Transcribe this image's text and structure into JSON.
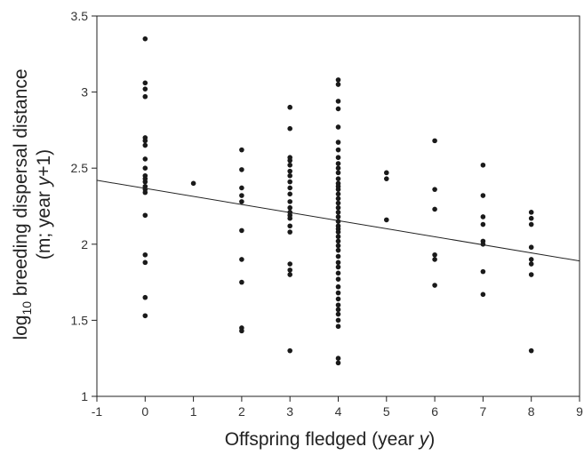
{
  "chart_data": {
    "type": "scatter",
    "xlabel": "Offspring fledged (year y)",
    "ylabel": {
      "prefix": "log",
      "subscript": "10",
      "line1_rest": " breeding dispersal distance",
      "line2_pre": "(m; year ",
      "line2_italic": "y",
      "line2_post": "+1)"
    },
    "xlabel_parts": {
      "pre": "Offspring fledged (year ",
      "italic": "y",
      "post": ")"
    },
    "xlim": [
      -1,
      9
    ],
    "ylim": [
      1,
      3.5
    ],
    "x_ticks": [
      -1,
      0,
      1,
      2,
      3,
      4,
      5,
      6,
      7,
      8,
      9
    ],
    "y_ticks": [
      1,
      1.5,
      2,
      2.5,
      3,
      3.5
    ],
    "x_tick_labels": [
      "-1",
      "0",
      "1",
      "2",
      "3",
      "4",
      "5",
      "6",
      "7",
      "8",
      "9"
    ],
    "y_tick_labels": [
      "1",
      "1.5",
      "2",
      "2.5",
      "3",
      "3.5"
    ],
    "grid": false,
    "legend": "none",
    "points": [
      {
        "x": 0,
        "y": 3.35
      },
      {
        "x": 0,
        "y": 3.06
      },
      {
        "x": 0,
        "y": 3.02
      },
      {
        "x": 0,
        "y": 2.97
      },
      {
        "x": 0,
        "y": 2.7
      },
      {
        "x": 0,
        "y": 2.68
      },
      {
        "x": 0,
        "y": 2.65
      },
      {
        "x": 0,
        "y": 2.56
      },
      {
        "x": 0,
        "y": 2.5
      },
      {
        "x": 0,
        "y": 2.45
      },
      {
        "x": 0,
        "y": 2.43
      },
      {
        "x": 0,
        "y": 2.41
      },
      {
        "x": 0,
        "y": 2.38
      },
      {
        "x": 0,
        "y": 2.36
      },
      {
        "x": 0,
        "y": 2.34
      },
      {
        "x": 0,
        "y": 2.19
      },
      {
        "x": 0,
        "y": 1.93
      },
      {
        "x": 0,
        "y": 1.88
      },
      {
        "x": 0,
        "y": 1.65
      },
      {
        "x": 0,
        "y": 1.53
      },
      {
        "x": 1,
        "y": 2.4
      },
      {
        "x": 2,
        "y": 2.62
      },
      {
        "x": 2,
        "y": 2.49
      },
      {
        "x": 2,
        "y": 2.37
      },
      {
        "x": 2,
        "y": 2.32
      },
      {
        "x": 2,
        "y": 2.28
      },
      {
        "x": 2,
        "y": 2.09
      },
      {
        "x": 2,
        "y": 1.9
      },
      {
        "x": 2,
        "y": 1.75
      },
      {
        "x": 2,
        "y": 1.45
      },
      {
        "x": 2,
        "y": 1.43
      },
      {
        "x": 3,
        "y": 2.9
      },
      {
        "x": 3,
        "y": 2.76
      },
      {
        "x": 3,
        "y": 2.57
      },
      {
        "x": 3,
        "y": 2.55
      },
      {
        "x": 3,
        "y": 2.52
      },
      {
        "x": 3,
        "y": 2.48
      },
      {
        "x": 3,
        "y": 2.45
      },
      {
        "x": 3,
        "y": 2.41
      },
      {
        "x": 3,
        "y": 2.37
      },
      {
        "x": 3,
        "y": 2.33
      },
      {
        "x": 3,
        "y": 2.28
      },
      {
        "x": 3,
        "y": 2.24
      },
      {
        "x": 3,
        "y": 2.21
      },
      {
        "x": 3,
        "y": 2.19
      },
      {
        "x": 3,
        "y": 2.17
      },
      {
        "x": 3,
        "y": 2.12
      },
      {
        "x": 3,
        "y": 2.08
      },
      {
        "x": 3,
        "y": 1.87
      },
      {
        "x": 3,
        "y": 1.83
      },
      {
        "x": 3,
        "y": 1.8
      },
      {
        "x": 3,
        "y": 1.3
      },
      {
        "x": 4,
        "y": 3.08
      },
      {
        "x": 4,
        "y": 3.05
      },
      {
        "x": 4,
        "y": 2.94
      },
      {
        "x": 4,
        "y": 2.89
      },
      {
        "x": 4,
        "y": 2.77
      },
      {
        "x": 4,
        "y": 2.67
      },
      {
        "x": 4,
        "y": 2.62
      },
      {
        "x": 4,
        "y": 2.57
      },
      {
        "x": 4,
        "y": 2.53
      },
      {
        "x": 4,
        "y": 2.5
      },
      {
        "x": 4,
        "y": 2.47
      },
      {
        "x": 4,
        "y": 2.43
      },
      {
        "x": 4,
        "y": 2.4
      },
      {
        "x": 4,
        "y": 2.38
      },
      {
        "x": 4,
        "y": 2.36
      },
      {
        "x": 4,
        "y": 2.33
      },
      {
        "x": 4,
        "y": 2.3
      },
      {
        "x": 4,
        "y": 2.27
      },
      {
        "x": 4,
        "y": 2.24
      },
      {
        "x": 4,
        "y": 2.21
      },
      {
        "x": 4,
        "y": 2.18
      },
      {
        "x": 4,
        "y": 2.15
      },
      {
        "x": 4,
        "y": 2.12
      },
      {
        "x": 4,
        "y": 2.1
      },
      {
        "x": 4,
        "y": 2.08
      },
      {
        "x": 4,
        "y": 2.05
      },
      {
        "x": 4,
        "y": 2.02
      },
      {
        "x": 4,
        "y": 1.99
      },
      {
        "x": 4,
        "y": 1.96
      },
      {
        "x": 4,
        "y": 1.92
      },
      {
        "x": 4,
        "y": 1.88
      },
      {
        "x": 4,
        "y": 1.85
      },
      {
        "x": 4,
        "y": 1.81
      },
      {
        "x": 4,
        "y": 1.77
      },
      {
        "x": 4,
        "y": 1.72
      },
      {
        "x": 4,
        "y": 1.68
      },
      {
        "x": 4,
        "y": 1.64
      },
      {
        "x": 4,
        "y": 1.6
      },
      {
        "x": 4,
        "y": 1.57
      },
      {
        "x": 4,
        "y": 1.54
      },
      {
        "x": 4,
        "y": 1.5
      },
      {
        "x": 4,
        "y": 1.46
      },
      {
        "x": 4,
        "y": 1.25
      },
      {
        "x": 4,
        "y": 1.22
      },
      {
        "x": 5,
        "y": 2.47
      },
      {
        "x": 5,
        "y": 2.43
      },
      {
        "x": 5,
        "y": 2.16
      },
      {
        "x": 6,
        "y": 2.68
      },
      {
        "x": 6,
        "y": 2.36
      },
      {
        "x": 6,
        "y": 2.23
      },
      {
        "x": 6,
        "y": 1.93
      },
      {
        "x": 6,
        "y": 1.9
      },
      {
        "x": 6,
        "y": 1.73
      },
      {
        "x": 7,
        "y": 2.52
      },
      {
        "x": 7,
        "y": 2.32
      },
      {
        "x": 7,
        "y": 2.18
      },
      {
        "x": 7,
        "y": 2.13
      },
      {
        "x": 7,
        "y": 2.02
      },
      {
        "x": 7,
        "y": 2.0
      },
      {
        "x": 7,
        "y": 1.82
      },
      {
        "x": 7,
        "y": 1.67
      },
      {
        "x": 8,
        "y": 2.21
      },
      {
        "x": 8,
        "y": 2.17
      },
      {
        "x": 8,
        "y": 2.13
      },
      {
        "x": 8,
        "y": 1.98
      },
      {
        "x": 8,
        "y": 1.9
      },
      {
        "x": 8,
        "y": 1.87
      },
      {
        "x": 8,
        "y": 1.8
      },
      {
        "x": 8,
        "y": 1.3
      }
    ],
    "trend_line": {
      "x": [
        -1,
        9
      ],
      "y": [
        2.42,
        1.89
      ]
    },
    "colors": {
      "points": "#1a1a1a",
      "line": "#222222",
      "axis": "#222222"
    }
  }
}
